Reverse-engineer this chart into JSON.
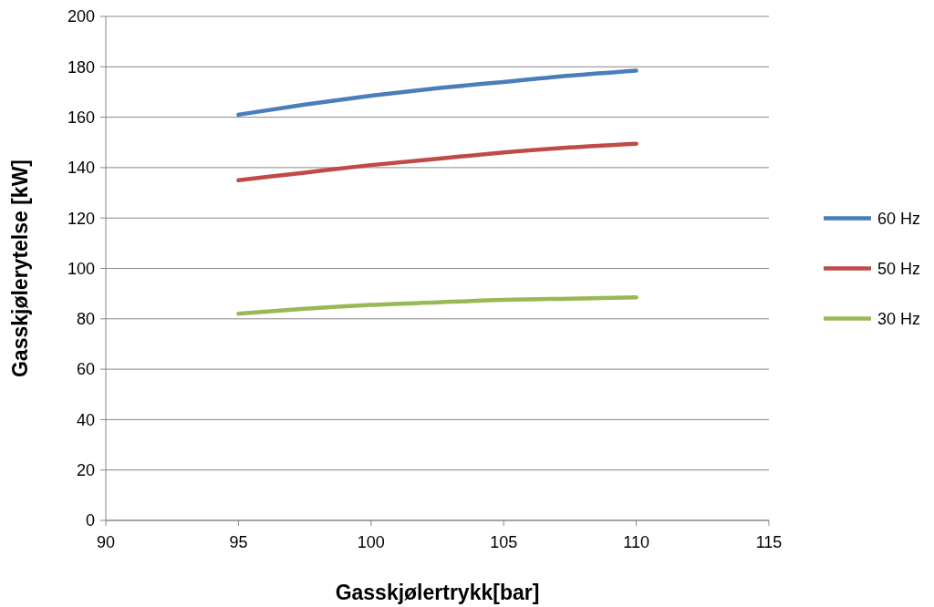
{
  "chart_data": {
    "type": "line",
    "xlabel": "Gasskjølertrykk[bar]",
    "ylabel": "Gasskjølerytelse [kW]",
    "x": [
      95,
      97.5,
      100,
      102.5,
      105,
      107.5,
      110
    ],
    "series": [
      {
        "name": "60 Hz",
        "color": "#4a7ebb",
        "values": [
          161,
          165,
          168.5,
          171.5,
          174,
          176.5,
          178.5
        ]
      },
      {
        "name": "50 Hz",
        "color": "#be4b48",
        "values": [
          135,
          138,
          141,
          143.5,
          146,
          148,
          149.5
        ]
      },
      {
        "name": "30 Hz",
        "color": "#98b954",
        "values": [
          82,
          84,
          85.5,
          86.5,
          87.5,
          88,
          88.5
        ]
      }
    ],
    "xlim": [
      90,
      115
    ],
    "xticks": [
      90,
      95,
      100,
      105,
      110,
      115
    ],
    "ylim": [
      0,
      200
    ],
    "yticks": [
      0,
      20,
      40,
      60,
      80,
      100,
      120,
      140,
      160,
      180,
      200
    ],
    "grid": "y",
    "legend": "right",
    "marker": "none",
    "line_style": "solid"
  }
}
